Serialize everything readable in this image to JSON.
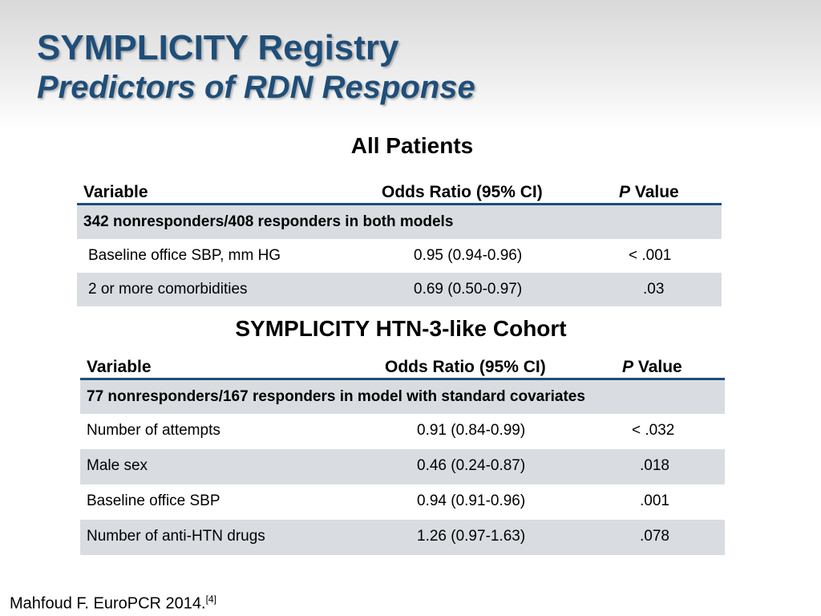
{
  "title": "SYMPLICITY Registry",
  "subtitle": "Predictors of RDN Response",
  "section1": {
    "title": "All Patients",
    "headers": {
      "variable": "Variable",
      "odds": "Odds Ratio (95% CI)",
      "p_italic": "P",
      "p_rest": " Value"
    },
    "group": "342 nonresponders/408 responders in both models",
    "rows": [
      {
        "variable": "Baseline office SBP, mm HG",
        "odds": "0.95 (0.94-0.96)",
        "p": "< .001"
      },
      {
        "variable": "2 or more comorbidities",
        "odds": "0.69 (0.50-0.97)",
        "p": ".03"
      }
    ]
  },
  "section2": {
    "title": "SYMPLICITY HTN-3-like Cohort",
    "headers": {
      "variable": "Variable",
      "odds": "Odds Ratio (95% CI)",
      "p_italic": "P",
      "p_rest": " Value"
    },
    "group": "77 nonresponders/167 responders in model with standard covariates",
    "rows": [
      {
        "variable": "Number of attempts",
        "odds": "0.91 (0.84-0.99)",
        "p": "< .032"
      },
      {
        "variable": "Male sex",
        "odds": "0.46 (0.24-0.87)",
        "p": ".018"
      },
      {
        "variable": "Baseline office SBP",
        "odds": "0.94 (0.91-0.96)",
        "p": ".001"
      },
      {
        "variable": "Number of anti-HTN drugs",
        "odds": "1.26 (0.97-1.63)",
        "p": ".078"
      }
    ]
  },
  "footer": {
    "text": "Mahfoud F. EuroPCR 2014.",
    "ref": "[4]"
  }
}
